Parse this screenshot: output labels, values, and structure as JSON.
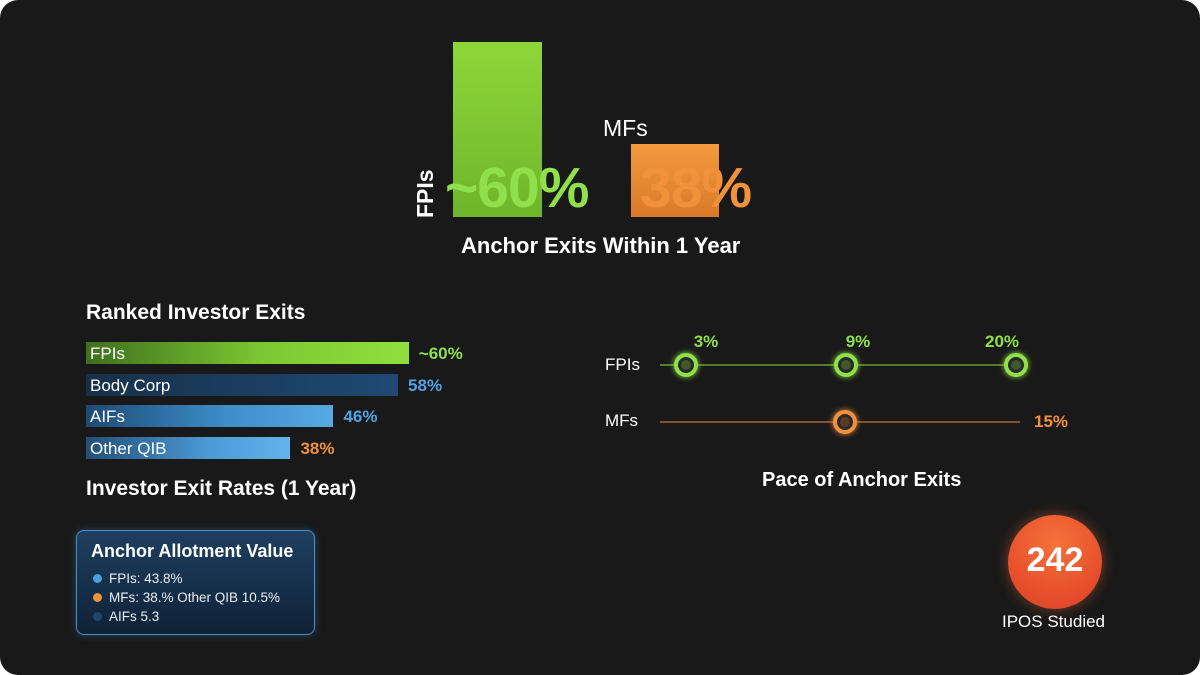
{
  "colors": {
    "fpi_green": "#8fd63a",
    "mf_orange": "#f2913c",
    "body_corp_blue": "#1d4670",
    "aif_blue": "#4aa2dc",
    "other_qib_blue": "#5db0e6",
    "ipo_red": "#e8512d"
  },
  "chart_data": [
    {
      "type": "bar",
      "title": "Anchor Exits Within 1 Year",
      "categories": [
        "FPIs",
        "MFs"
      ],
      "values": [
        60,
        38
      ],
      "value_labels": [
        "~60%",
        "38%"
      ],
      "unit": "%",
      "ylim": [
        0,
        60
      ]
    },
    {
      "type": "bar",
      "orientation": "horizontal",
      "title": "Ranked Investor Exits",
      "caption": "Investor Exit Rates (1 Year)",
      "categories": [
        "FPIs",
        "Body Corp",
        "AIFs",
        "Other QIB"
      ],
      "values": [
        60,
        58,
        46,
        38
      ],
      "value_labels": [
        "~60%",
        "58%",
        "46%",
        "38%"
      ],
      "unit": "%"
    },
    {
      "type": "scatter",
      "title": "Pace of Anchor Exits",
      "series": [
        {
          "name": "FPIs",
          "points": [
            3,
            9,
            20
          ],
          "labels": [
            "3%",
            "9%",
            "20%"
          ]
        },
        {
          "name": "MFs",
          "points": [
            15
          ],
          "labels": [
            "15%"
          ]
        }
      ]
    }
  ],
  "legend_card": {
    "title": "Anchor Allotment Value",
    "items": [
      {
        "text": "FPIs: 43.8%",
        "color": "#4aa2dc"
      },
      {
        "text": "MFs: 38.% Other QIB 10.5%",
        "color": "#f2913c"
      },
      {
        "text": "AIFs  5.3",
        "color": "#1d4670"
      }
    ]
  },
  "ipo_stat": {
    "number": "242",
    "label": "IPOS Studied"
  }
}
